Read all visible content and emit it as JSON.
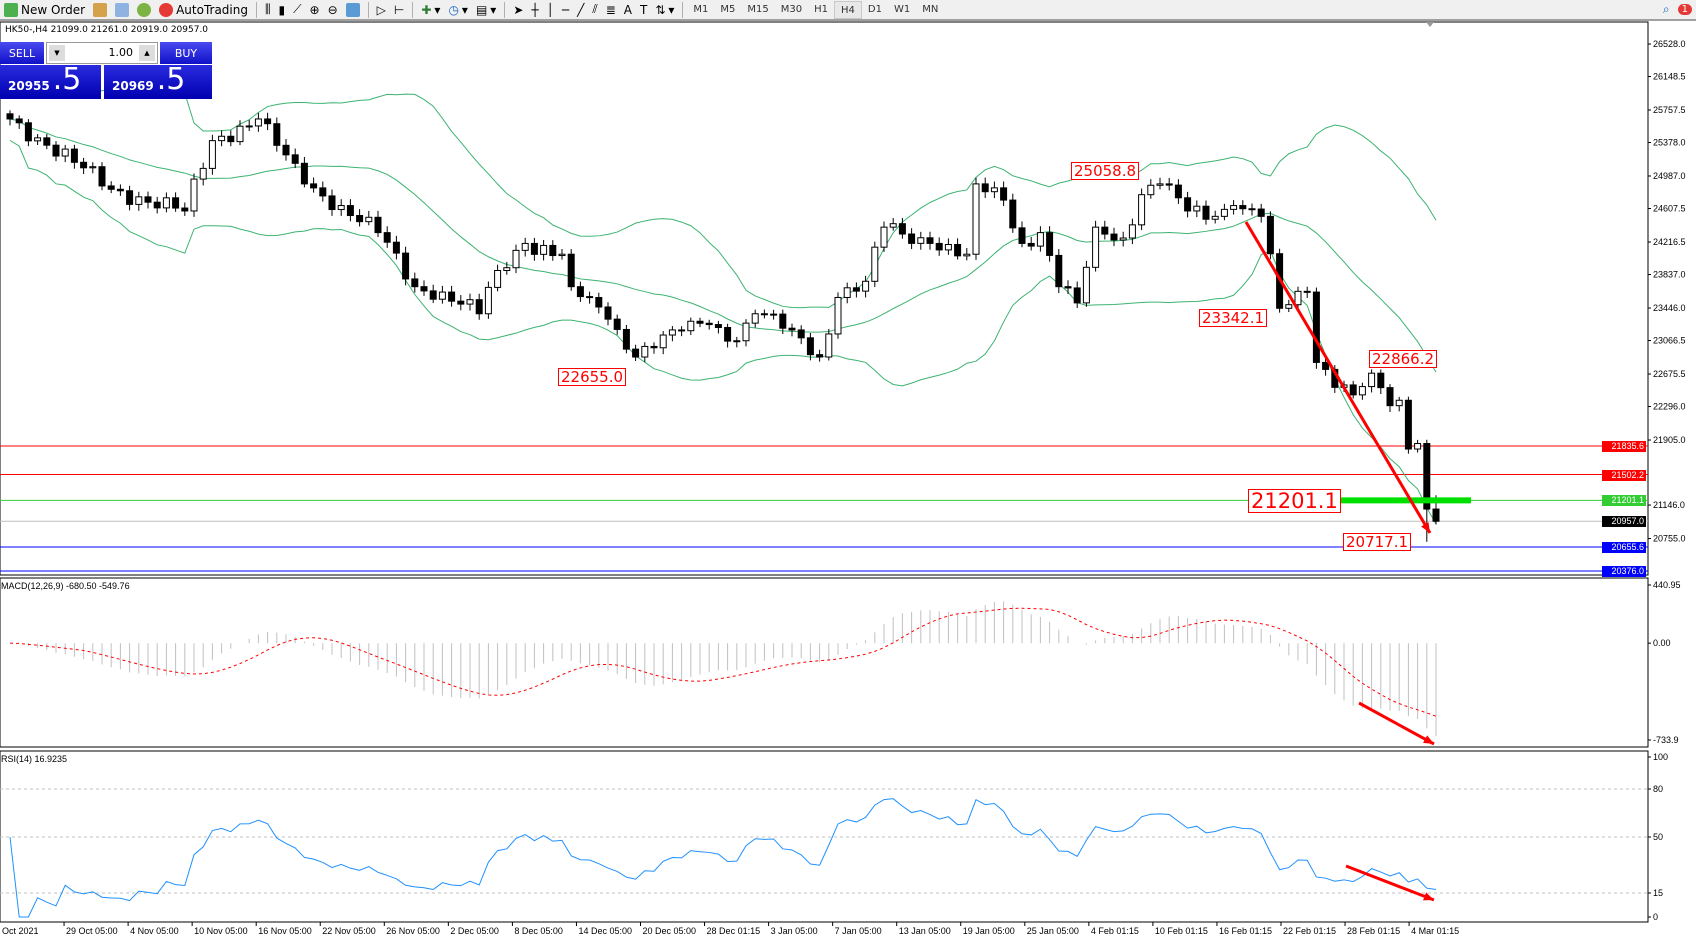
{
  "toolbar": {
    "new_order": "New Order",
    "autotrading": "AutoTrading",
    "timeframes": [
      "M1",
      "M5",
      "M15",
      "M30",
      "H1",
      "H4",
      "D1",
      "W1",
      "MN"
    ],
    "active_timeframe": "H4",
    "notification_count": "1"
  },
  "chart_header": "HK50-,H4  21099.0 21261.0 20919.0 20957.0",
  "trade_panel": {
    "sell_label": "SELL",
    "buy_label": "BUY",
    "lot": "1.00",
    "sell_small": "20955",
    "sell_large": ".5",
    "buy_small": "20969",
    "buy_large": ".5"
  },
  "chart_data": {
    "type": "candlestick",
    "symbol": "HK50-",
    "timeframe": "H4",
    "last_bar": {
      "open": 21099.0,
      "high": 21261.0,
      "low": 20919.0,
      "close": 20957.0
    },
    "close_waypoints": [
      [
        0,
        25653
      ],
      [
        7,
        25147
      ],
      [
        11,
        24832
      ],
      [
        19,
        24579
      ],
      [
        22,
        25400
      ],
      [
        27,
        25653
      ],
      [
        32,
        24895
      ],
      [
        36,
        24642
      ],
      [
        40,
        24326
      ],
      [
        44,
        23695
      ],
      [
        47,
        23632
      ],
      [
        51,
        23379
      ],
      [
        53,
        23884
      ],
      [
        56,
        24200
      ],
      [
        60,
        24074
      ],
      [
        61,
        23695
      ],
      [
        65,
        23316
      ],
      [
        68,
        22874
      ],
      [
        72,
        23190
      ],
      [
        76,
        23253
      ],
      [
        79,
        23064
      ],
      [
        81,
        23379
      ],
      [
        85,
        23190
      ],
      [
        88,
        22874
      ],
      [
        90,
        23569
      ],
      [
        93,
        23758
      ],
      [
        95,
        24390
      ],
      [
        100,
        24200
      ],
      [
        104,
        24074
      ],
      [
        105,
        24895
      ],
      [
        108,
        24706
      ],
      [
        110,
        24200
      ],
      [
        112,
        24326
      ],
      [
        114,
        23695
      ],
      [
        116,
        23506
      ],
      [
        118,
        24390
      ],
      [
        121,
        24263
      ],
      [
        123,
        24769
      ],
      [
        125,
        24895
      ],
      [
        128,
        24579
      ],
      [
        131,
        24516
      ],
      [
        133,
        24642
      ],
      [
        136,
        24516
      ],
      [
        138,
        23443
      ],
      [
        141,
        23632
      ],
      [
        142,
        22811
      ],
      [
        146,
        22432
      ],
      [
        148,
        22685
      ],
      [
        150,
        22306
      ],
      [
        151,
        22369
      ],
      [
        152,
        21800
      ],
      [
        153,
        21864
      ],
      [
        154,
        21099
      ],
      [
        155,
        20957
      ]
    ],
    "price_axis": {
      "max": 26528.0,
      "min": 20376.0,
      "ticks": [
        "26528.0",
        "26148.5",
        "25757.5",
        "25378.0",
        "24987.0",
        "24607.5",
        "24216.5",
        "23837.0",
        "23446.0",
        "23066.5",
        "22675.5",
        "22296.0",
        "21905.0",
        "21146.0",
        "20755.0"
      ]
    },
    "levels": [
      {
        "price": "21835.6",
        "color": "#ff0000"
      },
      {
        "price": "21502.2",
        "color": "#ff0000"
      },
      {
        "price": "21201.1",
        "color": "#32cd32"
      },
      {
        "price": "20957.0",
        "color": "#000000",
        "line": "#c0c0c0"
      },
      {
        "price": "20655.6",
        "color": "#0000ff"
      },
      {
        "price": "20376.0",
        "color": "#0000ff"
      }
    ],
    "annotations": [
      {
        "text": "25058.8",
        "bar": 118,
        "price": 25058.8
      },
      {
        "text": "23342.1",
        "bar": 138,
        "price": 23342.1
      },
      {
        "text": "22655.0",
        "bar": 67,
        "price": 22655.0
      },
      {
        "text": "22866.2",
        "bar": 151,
        "price": 22866.2
      },
      {
        "text": "21201.1",
        "bar": 140,
        "price": 21201.1
      },
      {
        "text": "20717.1",
        "bar": 151,
        "price": 20717.1
      }
    ],
    "bollinger": {
      "period": 20,
      "deviation": 2,
      "color": "#3cb371"
    },
    "macd": {
      "label": "MACD(12,26,9) -680.50 -549.76",
      "ticks": [
        "440.95",
        "0.00",
        "-733.9"
      ],
      "max": 440.95,
      "min": -733.9,
      "histogram_color": "#c0c0c0",
      "signal_color": "#ff0000"
    },
    "rsi": {
      "label": "RSI(14) 16.9235",
      "ticks": [
        "100",
        "80",
        "50",
        "15",
        "0"
      ],
      "levels": [
        80,
        50,
        15
      ],
      "color": "#1e90ff"
    },
    "time_labels": [
      "Oct 2021",
      "29 Oct 05:00",
      "4 Nov 05:00",
      "10 Nov 05:00",
      "16 Nov 05:00",
      "22 Nov 05:00",
      "26 Nov 05:00",
      "2 Dec 05:00",
      "8 Dec 05:00",
      "14 Dec 05:00",
      "20 Dec 05:00",
      "28 Dec 01:15",
      "3 Jan 05:00",
      "7 Jan 05:00",
      "13 Jan 05:00",
      "19 Jan 05:00",
      "25 Jan 05:00",
      "4 Feb 01:15",
      "10 Feb 01:15",
      "16 Feb 01:15",
      "22 Feb 01:15",
      "28 Feb 01:15",
      "4 Mar 01:15"
    ],
    "trend_arrows_color": "#ff0000"
  }
}
